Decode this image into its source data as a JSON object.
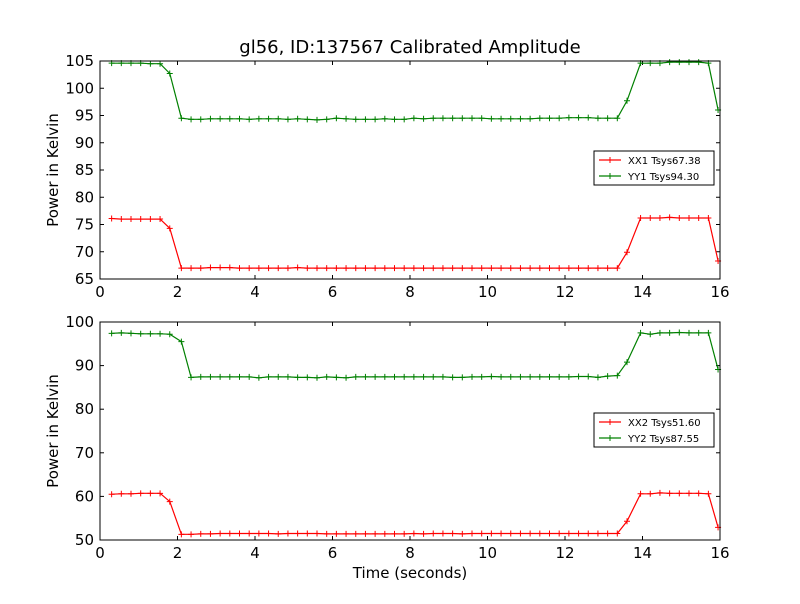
{
  "figure": {
    "title": "gl56, ID:137567 Calibrated Amplitude",
    "xlabel": "Time (seconds)"
  },
  "chart_data": [
    {
      "type": "line",
      "title": "gl56, ID:137567 Calibrated Amplitude",
      "xlabel": "",
      "ylabel": "Power in Kelvin",
      "xlim": [
        0,
        16
      ],
      "ylim": [
        65,
        105
      ],
      "xticks": [
        "0",
        "2",
        "4",
        "6",
        "8",
        "10",
        "12",
        "14",
        "16"
      ],
      "yticks": [
        "65",
        "70",
        "75",
        "80",
        "85",
        "90",
        "95",
        "100",
        "105"
      ],
      "grid": false,
      "legend_position": "right",
      "x": [
        0.3,
        0.55,
        0.8,
        1.05,
        1.3,
        1.55,
        1.8,
        2.1,
        2.35,
        2.6,
        2.85,
        3.1,
        3.35,
        3.6,
        3.85,
        4.1,
        4.35,
        4.6,
        4.85,
        5.1,
        5.35,
        5.6,
        5.85,
        6.1,
        6.35,
        6.6,
        6.85,
        7.1,
        7.35,
        7.6,
        7.85,
        8.1,
        8.35,
        8.6,
        8.85,
        9.1,
        9.35,
        9.6,
        9.85,
        10.1,
        10.35,
        10.6,
        10.85,
        11.1,
        11.35,
        11.6,
        11.85,
        12.1,
        12.35,
        12.6,
        12.85,
        13.1,
        13.35,
        13.6,
        13.95,
        14.2,
        14.45,
        14.7,
        14.95,
        15.2,
        15.45,
        15.7,
        15.95
      ],
      "series": [
        {
          "name": "XX1 Tsys67.38",
          "color": "#ff0000",
          "values": [
            76.1,
            76.0,
            76.0,
            76.0,
            76.0,
            76.0,
            74.3,
            67.0,
            67.0,
            67.0,
            67.1,
            67.1,
            67.1,
            67.0,
            67.0,
            67.0,
            67.0,
            67.0,
            67.0,
            67.1,
            67.0,
            67.0,
            67.0,
            67.0,
            67.0,
            67.0,
            67.0,
            67.0,
            67.0,
            67.0,
            67.0,
            67.0,
            67.0,
            67.0,
            67.0,
            67.0,
            67.0,
            67.0,
            67.0,
            67.0,
            67.0,
            67.0,
            67.0,
            67.0,
            67.0,
            67.0,
            67.0,
            67.0,
            67.0,
            67.0,
            67.0,
            67.0,
            67.0,
            69.9,
            76.2,
            76.2,
            76.2,
            76.3,
            76.2,
            76.2,
            76.2,
            76.2,
            68.3
          ]
        },
        {
          "name": "YY1 Tsys94.30",
          "color": "#008000",
          "values": [
            104.6,
            104.6,
            104.6,
            104.6,
            104.5,
            104.5,
            102.7,
            94.5,
            94.3,
            94.3,
            94.4,
            94.4,
            94.4,
            94.4,
            94.3,
            94.4,
            94.4,
            94.4,
            94.3,
            94.4,
            94.3,
            94.2,
            94.3,
            94.5,
            94.4,
            94.3,
            94.3,
            94.3,
            94.4,
            94.3,
            94.3,
            94.5,
            94.4,
            94.5,
            94.5,
            94.5,
            94.5,
            94.5,
            94.5,
            94.4,
            94.4,
            94.4,
            94.4,
            94.4,
            94.5,
            94.5,
            94.5,
            94.6,
            94.6,
            94.6,
            94.5,
            94.5,
            94.5,
            97.7,
            104.6,
            104.6,
            104.6,
            104.8,
            104.8,
            104.8,
            104.8,
            104.6,
            96.0
          ]
        }
      ]
    },
    {
      "type": "line",
      "title": "",
      "xlabel": "Time (seconds)",
      "ylabel": "Power in Kelvin",
      "xlim": [
        0,
        16
      ],
      "ylim": [
        50,
        100
      ],
      "xticks": [
        "0",
        "2",
        "4",
        "6",
        "8",
        "10",
        "12",
        "14",
        "16"
      ],
      "yticks": [
        "50",
        "60",
        "70",
        "80",
        "90",
        "100"
      ],
      "grid": false,
      "legend_position": "right",
      "x": [
        0.3,
        0.55,
        0.8,
        1.05,
        1.3,
        1.55,
        1.8,
        2.1,
        2.35,
        2.6,
        2.85,
        3.1,
        3.35,
        3.6,
        3.85,
        4.1,
        4.35,
        4.6,
        4.85,
        5.1,
        5.35,
        5.6,
        5.85,
        6.1,
        6.35,
        6.6,
        6.85,
        7.1,
        7.35,
        7.6,
        7.85,
        8.1,
        8.35,
        8.6,
        8.85,
        9.1,
        9.35,
        9.6,
        9.85,
        10.1,
        10.35,
        10.6,
        10.85,
        11.1,
        11.35,
        11.6,
        11.85,
        12.1,
        12.35,
        12.6,
        12.85,
        13.1,
        13.35,
        13.6,
        13.95,
        14.2,
        14.45,
        14.7,
        14.95,
        15.2,
        15.45,
        15.7,
        15.95
      ],
      "series": [
        {
          "name": "XX2 Tsys51.60",
          "color": "#ff0000",
          "values": [
            60.5,
            60.6,
            60.6,
            60.7,
            60.7,
            60.7,
            58.8,
            51.3,
            51.3,
            51.4,
            51.4,
            51.5,
            51.5,
            51.5,
            51.5,
            51.5,
            51.5,
            51.4,
            51.5,
            51.5,
            51.5,
            51.5,
            51.4,
            51.4,
            51.4,
            51.4,
            51.4,
            51.4,
            51.4,
            51.4,
            51.4,
            51.5,
            51.4,
            51.5,
            51.5,
            51.5,
            51.4,
            51.5,
            51.5,
            51.5,
            51.5,
            51.5,
            51.5,
            51.5,
            51.5,
            51.5,
            51.5,
            51.5,
            51.5,
            51.5,
            51.5,
            51.5,
            51.5,
            54.3,
            60.6,
            60.6,
            60.8,
            60.7,
            60.7,
            60.7,
            60.7,
            60.6,
            52.9
          ]
        },
        {
          "name": "YY2 Tsys87.55",
          "color": "#008000",
          "values": [
            97.4,
            97.5,
            97.4,
            97.3,
            97.3,
            97.3,
            97.2,
            95.5,
            87.3,
            87.4,
            87.4,
            87.4,
            87.4,
            87.4,
            87.4,
            87.2,
            87.4,
            87.4,
            87.4,
            87.3,
            87.3,
            87.2,
            87.4,
            87.3,
            87.2,
            87.4,
            87.4,
            87.4,
            87.4,
            87.4,
            87.4,
            87.4,
            87.4,
            87.4,
            87.4,
            87.3,
            87.3,
            87.4,
            87.4,
            87.5,
            87.4,
            87.4,
            87.4,
            87.4,
            87.4,
            87.4,
            87.4,
            87.4,
            87.5,
            87.5,
            87.3,
            87.6,
            87.7,
            90.8,
            97.5,
            97.2,
            97.5,
            97.5,
            97.6,
            97.5,
            97.5,
            97.5,
            89.1
          ]
        }
      ]
    }
  ]
}
